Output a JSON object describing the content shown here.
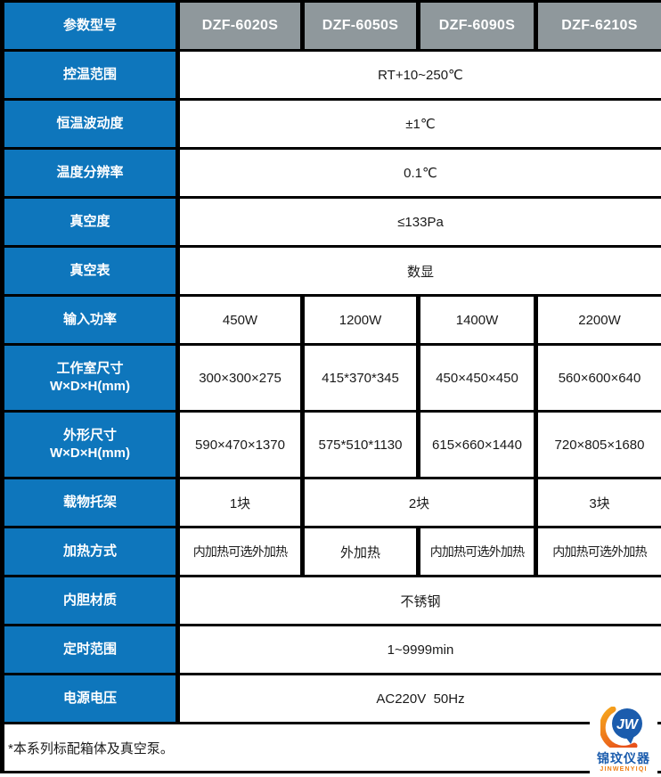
{
  "colors": {
    "label_blue": "#0e76bc",
    "header_gray": "#8f989c",
    "border_black": "#000000",
    "value_text": "#1a1a1a",
    "logo_blue": "#1b5cad",
    "logo_orange": "#f07e12"
  },
  "header": {
    "param_label": "参数型号",
    "models": [
      "DZF-6020S",
      "DZF-6050S",
      "DZF-6090S",
      "DZF-6210S"
    ]
  },
  "rows": [
    {
      "label": "控温范围",
      "cells": [
        {
          "text": "RT+10~250℃",
          "span": 4
        }
      ]
    },
    {
      "label": "恒温波动度",
      "cells": [
        {
          "text": "±1℃",
          "span": 4
        }
      ]
    },
    {
      "label": "温度分辨率",
      "cells": [
        {
          "text": "0.1℃",
          "span": 4
        }
      ]
    },
    {
      "label": "真空度",
      "cells": [
        {
          "text": "≤133Pa",
          "span": 4
        }
      ]
    },
    {
      "label": "真空表",
      "cells": [
        {
          "text": "数显",
          "span": 4
        }
      ]
    },
    {
      "label": "输入功率",
      "cells": [
        {
          "text": "450W",
          "span": 1
        },
        {
          "text": "1200W",
          "span": 1
        },
        {
          "text": "1400W",
          "span": 1
        },
        {
          "text": "2200W",
          "span": 1
        }
      ]
    },
    {
      "label": "工作室尺寸",
      "label2": "W×D×H(mm)",
      "tall": true,
      "cells": [
        {
          "text": "300×300×275",
          "span": 1
        },
        {
          "text": "415*370*345",
          "span": 1
        },
        {
          "text": "450×450×450",
          "span": 1
        },
        {
          "text": "560×600×640",
          "span": 1
        }
      ]
    },
    {
      "label": "外形尺寸",
      "label2": "W×D×H(mm)",
      "tall": true,
      "cells": [
        {
          "text": "590×470×1370",
          "span": 1
        },
        {
          "text": "575*510*1130",
          "span": 1
        },
        {
          "text": "615×660×1440",
          "span": 1
        },
        {
          "text": "720×805×1680",
          "span": 1
        }
      ]
    },
    {
      "label": "载物托架",
      "cells": [
        {
          "text": "1块",
          "span": 1
        },
        {
          "text": "2块",
          "span": 2
        },
        {
          "text": "3块",
          "span": 1
        }
      ]
    },
    {
      "label": "加热方式",
      "compact": true,
      "cells": [
        {
          "text": "内加热可选外加热",
          "span": 1
        },
        {
          "text": "外加热",
          "span": 1
        },
        {
          "text": "内加热可选外加热",
          "span": 1
        },
        {
          "text": "内加热可选外加热",
          "span": 1
        }
      ]
    },
    {
      "label": "内胆材质",
      "cells": [
        {
          "text": "不锈钢",
          "span": 4
        }
      ]
    },
    {
      "label": "定时范围",
      "cells": [
        {
          "text": "1~9999min",
          "span": 4
        }
      ]
    },
    {
      "label": "电源电压",
      "cells": [
        {
          "text": "AC220V  50Hz",
          "span": 4
        }
      ]
    }
  ],
  "footnote": "*本系列标配箱体及真空泵。",
  "logo": {
    "monogram": "JW",
    "name_cn": "锦玟仪器",
    "name_en": "JINWENYIQI"
  }
}
